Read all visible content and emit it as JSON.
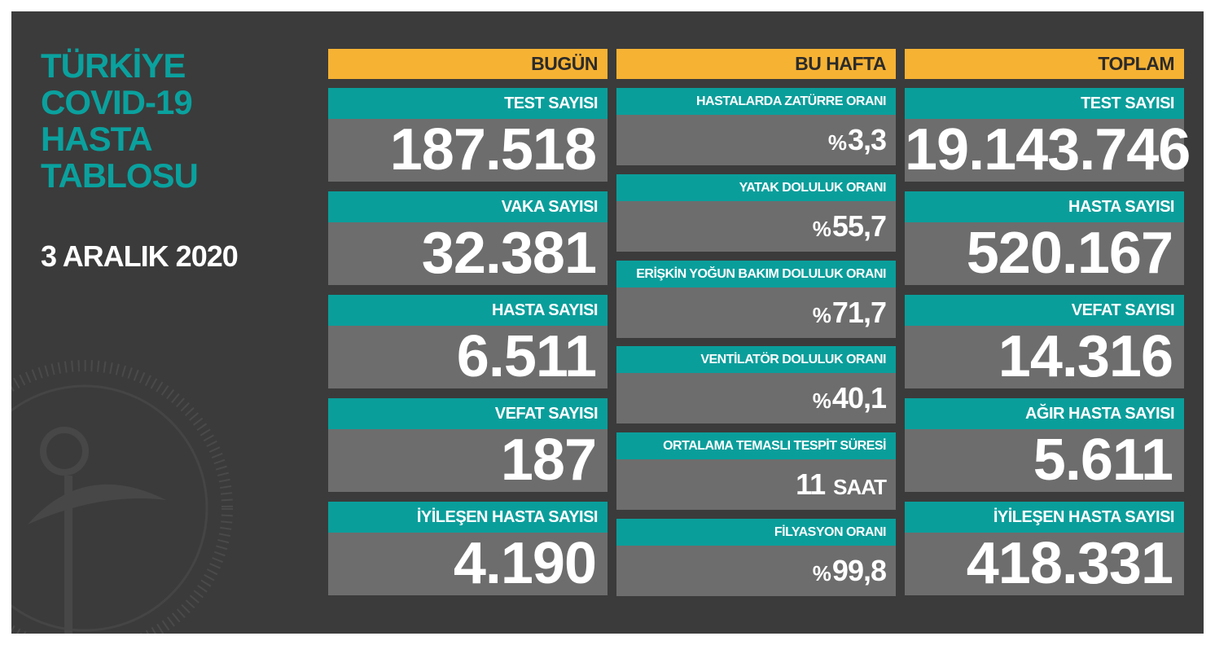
{
  "title": [
    "TÜRKİYE",
    "COVID-19",
    "HASTA",
    "TABLOSU"
  ],
  "date": "3 ARALIK 2020",
  "columns": [
    {
      "header": "BUGÜN",
      "items": [
        {
          "label": "TEST SAYISI",
          "value": "187.518"
        },
        {
          "label": "VAKA SAYISI",
          "value": "32.381"
        },
        {
          "label": "HASTA SAYISI",
          "value": "6.511"
        },
        {
          "label": "VEFAT SAYISI",
          "value": "187"
        },
        {
          "label": "İYİLEŞEN HASTA SAYISI",
          "value": "4.190"
        }
      ]
    },
    {
      "header": "BU HAFTA",
      "items": [
        {
          "label": "HASTALARDA ZATÜRRE ORANI",
          "prefix": "%",
          "value": "3,3"
        },
        {
          "label": "YATAK DOLULUK ORANI",
          "prefix": "%",
          "value": "55,7"
        },
        {
          "label": "ERİŞKİN YOĞUN BAKIM DOLULUK ORANI",
          "prefix": "%",
          "value": "71,7"
        },
        {
          "label": "VENTİLATÖR DOLULUK ORANI",
          "prefix": "%",
          "value": "40,1"
        },
        {
          "label": "ORTALAMA TEMASLI TESPİT SÜRESİ",
          "value": "11",
          "suffix": "SAAT"
        },
        {
          "label": "FİLYASYON ORANI",
          "prefix": "%",
          "value": "99,8"
        }
      ]
    },
    {
      "header": "TOPLAM",
      "items": [
        {
          "label": "TEST SAYISI",
          "value": "19.143.746"
        },
        {
          "label": "HASTA SAYISI",
          "value": "520.167"
        },
        {
          "label": "VEFAT SAYISI",
          "value": "14.316"
        },
        {
          "label": "AĞIR HASTA SAYISI",
          "value": "5.611"
        },
        {
          "label": "İYİLEŞEN HASTA SAYISI",
          "value": "418.331"
        }
      ]
    }
  ]
}
